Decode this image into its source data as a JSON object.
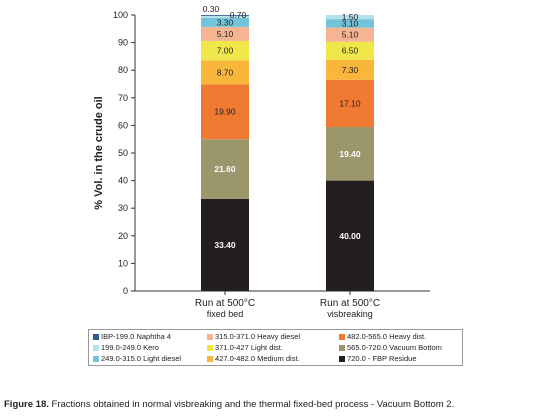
{
  "chart_data": {
    "type": "bar",
    "stacked": true,
    "ylabel": "% Vol. in the crude oil",
    "ylim": [
      0,
      100
    ],
    "yticks": [
      0,
      10,
      20,
      30,
      40,
      50,
      60,
      70,
      80,
      90,
      100
    ],
    "categories": [
      {
        "line1": "Run at 500°C",
        "line2": "fixed bed"
      },
      {
        "line1": "Run at 500°C",
        "line2": "visbreaking"
      }
    ],
    "series": [
      {
        "name": "720.0 - FBP Residue",
        "color": "#231f20",
        "label_color": "#ffffff",
        "values": [
          33.4,
          40.0
        ],
        "labels": [
          "33.40",
          "40.00"
        ]
      },
      {
        "name": "565.0-720.0 Vacuum Bottom",
        "color": "#9b966c",
        "label_color": "#ffffff",
        "values": [
          21.6,
          19.4
        ],
        "labels": [
          "21.60",
          "19.40"
        ]
      },
      {
        "name": "482.0-565.0 Heavy dist.",
        "color": "#f07a32",
        "label_color": "#222222",
        "values": [
          19.9,
          17.1
        ],
        "labels": [
          "19.90",
          "17.10"
        ]
      },
      {
        "name": "427.0-482.0 Medium dist.",
        "color": "#f8b73a",
        "label_color": "#222222",
        "values": [
          8.7,
          7.3
        ],
        "labels": [
          "8.70",
          "7.30"
        ]
      },
      {
        "name": "371.0-427 Light dist.",
        "color": "#f0e84a",
        "label_color": "#222222",
        "values": [
          7.0,
          6.5
        ],
        "labels": [
          "7.00",
          "6.50"
        ]
      },
      {
        "name": "315.0-371.0 Heavy diesel",
        "color": "#f6b592",
        "label_color": "#222222",
        "values": [
          5.1,
          5.1
        ],
        "labels": [
          "5.10",
          "5.10"
        ]
      },
      {
        "name": "249.0-315.0 Light diesel",
        "color": "#73c4da",
        "label_color": "#222222",
        "values": [
          3.3,
          3.1
        ],
        "labels": [
          "3.30",
          "3.10"
        ]
      },
      {
        "name": "199.0-249.0 Kero",
        "color": "#b3e1ec",
        "label_color": "#222222",
        "values": [
          0.7,
          1.5
        ],
        "labels": [
          "0.70",
          "1.50"
        ]
      },
      {
        "name": "IBP-199.0 Naphtha 4",
        "color": "#2e5a8c",
        "label_color": "#222222",
        "values": [
          0.3,
          0.0
        ],
        "labels": [
          "0.30",
          ""
        ]
      }
    ]
  },
  "legend": {
    "columns": [
      [
        "IBP-199.0 Naphtha 4",
        "199.0-249.0 Kero",
        "249.0-315.0 Light diesel"
      ],
      [
        "315.0-371.0 Heavy diesel",
        "371.0-427 Light dist.",
        "427.0-482.0 Medium dist."
      ],
      [
        "482.0-565.0 Heavy dist.",
        "565.0-720.0 Vacuum Bottom",
        "720.0 - FBP Residue"
      ]
    ]
  },
  "caption": {
    "label": "Figure 18.",
    "text": " Fractions obtained in normal visbreaking and the thermal fixed-bed process - Vacuum Bottom 2."
  }
}
